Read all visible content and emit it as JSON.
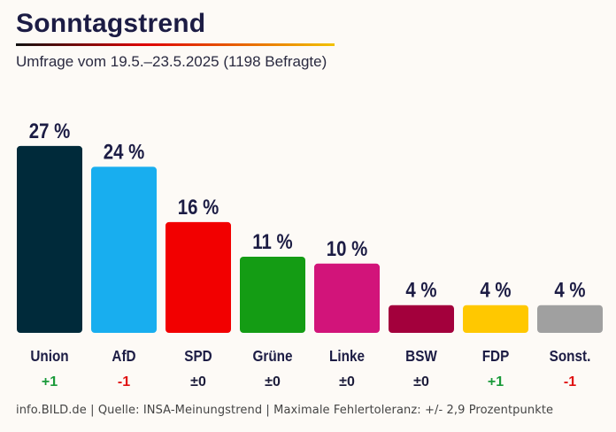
{
  "header": {
    "title": "Sonntagstrend",
    "subtitle": "Umfrage vom 19.5.–23.5.2025 (1198 Befragte)"
  },
  "footer": "info.BILD.de | Quelle: INSA-Meinungstrend | Maximale Fehlertoleranz: +/- 2,9 Prozentpunkte",
  "chart_data": {
    "type": "bar",
    "unit": "%",
    "ylim": [
      0,
      27
    ],
    "grid": false,
    "categories": [
      "Union",
      "AfD",
      "SPD",
      "Grüne",
      "Linke",
      "BSW",
      "FDP",
      "Sonst."
    ],
    "values": [
      27,
      24,
      16,
      11,
      10,
      4,
      4,
      4
    ],
    "value_labels": [
      "27 %",
      "24 %",
      "16 %",
      "11 %",
      "10 %",
      "4 %",
      "4 %",
      "4 %"
    ],
    "changes": [
      "+1",
      "-1",
      "±0",
      "±0",
      "±0",
      "±0",
      "+1",
      "-1"
    ],
    "colors": [
      "#002a3a",
      "#18aeef",
      "#f20000",
      "#149c14",
      "#d2147a",
      "#a3003c",
      "#ffc800",
      "#a0a0a0"
    ],
    "change_colors": {
      "up": "#1a9a3a",
      "down": "#e01010",
      "neutral": "#1c1c3a"
    }
  }
}
